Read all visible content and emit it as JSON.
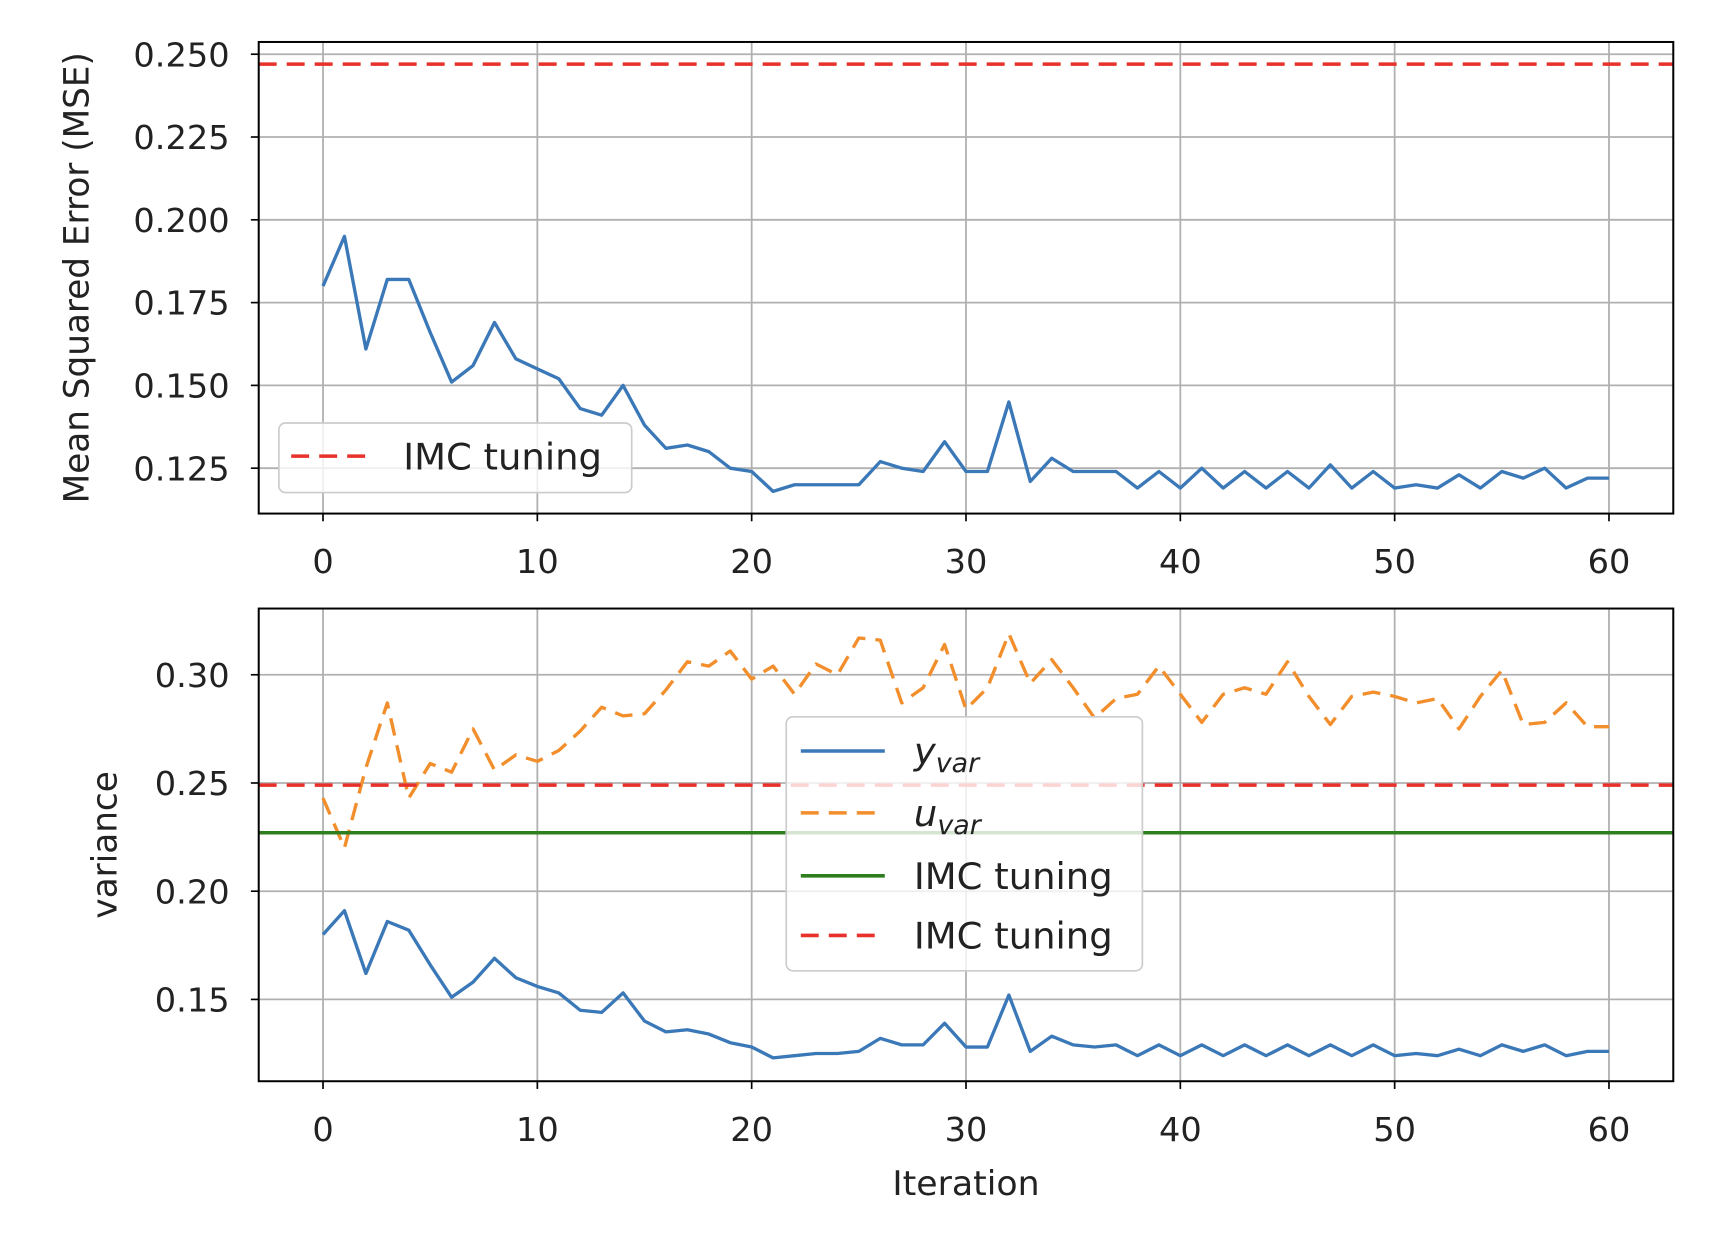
{
  "chart_data": [
    {
      "type": "line",
      "xlabel": "",
      "ylabel": "Mean Squared Error (MSE)",
      "xlim": [
        -3,
        63
      ],
      "ylim": [
        0.1113,
        0.2537
      ],
      "xticks": [
        "0",
        "10",
        "20",
        "30",
        "40",
        "50",
        "60"
      ],
      "yticks": [
        "0.125",
        "0.150",
        "0.175",
        "0.200",
        "0.225",
        "0.250"
      ],
      "grid": true,
      "legend_position": "lower-left",
      "series": [
        {
          "values": [
            0.18,
            0.195,
            0.161,
            0.182,
            0.182,
            0.166,
            0.151,
            0.156,
            0.169,
            0.158,
            0.155,
            0.152,
            0.143,
            0.141,
            0.15,
            0.138,
            0.131,
            0.132,
            0.13,
            0.125,
            0.124,
            0.118,
            0.12,
            0.12,
            0.12,
            0.12,
            0.127,
            0.125,
            0.124,
            0.133,
            0.124,
            0.124,
            0.145,
            0.121,
            0.128,
            0.124,
            0.124,
            0.124,
            0.119,
            0.124,
            0.119,
            0.125,
            0.119,
            0.124,
            0.119,
            0.124,
            0.119,
            0.126,
            0.119,
            0.124,
            0.119,
            0.12,
            0.119,
            0.123,
            0.119,
            0.124,
            0.122,
            0.125,
            0.119,
            0.122,
            0.122
          ],
          "color": "#3a78b8",
          "style": "solid"
        },
        {
          "name": "IMC tuning",
          "hline": 0.247,
          "color": "#e8312a",
          "style": "dashed"
        }
      ]
    },
    {
      "type": "line",
      "xlabel": "Iteration",
      "ylabel": "variance",
      "xlim": [
        -3,
        63
      ],
      "ylim": [
        0.1122,
        0.3306
      ],
      "xticks": [
        "0",
        "10",
        "20",
        "30",
        "40",
        "50",
        "60"
      ],
      "yticks": [
        "0.15",
        "0.20",
        "0.25",
        "0.30"
      ],
      "grid": true,
      "legend_position": "center",
      "series": [
        {
          "name": "y",
          "subscript": "var",
          "values": [
            0.18,
            0.191,
            0.162,
            0.186,
            0.182,
            0.166,
            0.151,
            0.158,
            0.169,
            0.16,
            0.156,
            0.153,
            0.145,
            0.144,
            0.153,
            0.14,
            0.135,
            0.136,
            0.134,
            0.13,
            0.128,
            0.123,
            0.124,
            0.125,
            0.125,
            0.126,
            0.132,
            0.129,
            0.129,
            0.139,
            0.128,
            0.128,
            0.152,
            0.126,
            0.133,
            0.129,
            0.128,
            0.129,
            0.124,
            0.129,
            0.124,
            0.129,
            0.124,
            0.129,
            0.124,
            0.129,
            0.124,
            0.129,
            0.124,
            0.129,
            0.124,
            0.125,
            0.124,
            0.127,
            0.124,
            0.129,
            0.126,
            0.129,
            0.124,
            0.126,
            0.126
          ],
          "color": "#3a78b8",
          "style": "solid"
        },
        {
          "name": "u",
          "subscript": "var",
          "values": [
            0.243,
            0.22,
            0.257,
            0.287,
            0.243,
            0.259,
            0.255,
            0.275,
            0.256,
            0.263,
            0.26,
            0.265,
            0.274,
            0.285,
            0.281,
            0.282,
            0.293,
            0.306,
            0.304,
            0.311,
            0.298,
            0.304,
            0.291,
            0.305,
            0.3,
            0.317,
            0.316,
            0.287,
            0.294,
            0.314,
            0.284,
            0.294,
            0.319,
            0.296,
            0.307,
            0.294,
            0.28,
            0.289,
            0.291,
            0.304,
            0.291,
            0.278,
            0.291,
            0.294,
            0.291,
            0.306,
            0.29,
            0.277,
            0.29,
            0.292,
            0.29,
            0.287,
            0.289,
            0.275,
            0.29,
            0.302,
            0.277,
            0.278,
            0.287,
            0.276,
            0.276
          ],
          "color": "#f28e2b",
          "style": "dashed"
        },
        {
          "name": "IMC tuning",
          "hline": 0.227,
          "color": "#2e7d1f",
          "style": "solid"
        },
        {
          "name": "IMC tuning",
          "hline": 0.249,
          "color": "#e8312a",
          "style": "dashed"
        }
      ]
    }
  ]
}
